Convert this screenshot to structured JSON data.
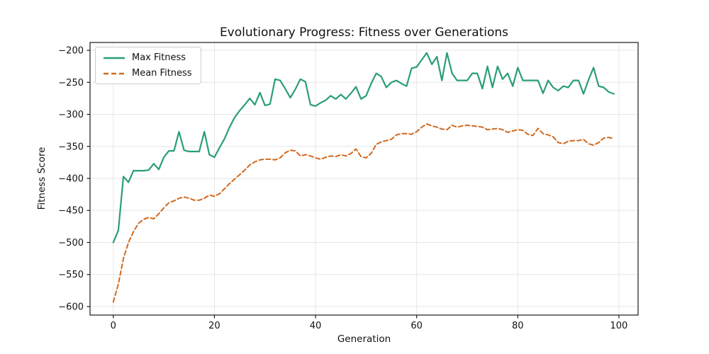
{
  "chart_data": {
    "type": "line",
    "title": "Evolutionary Progress: Fitness over Generations",
    "xlabel": "Generation",
    "ylabel": "Fitness Score",
    "x_start": 0,
    "x_step": 1,
    "xlim": [
      -4.6,
      103.8
    ],
    "ylim": [
      -613.3,
      -187.8
    ],
    "xticks": [
      0,
      20,
      40,
      60,
      80,
      100
    ],
    "yticks": [
      -200,
      -250,
      -300,
      -350,
      -400,
      -450,
      -500,
      -550,
      -600
    ],
    "grid": true,
    "grid_color": "#e6e6e6",
    "axis_color": "#1a1a1a",
    "legend": {
      "position": "upper-left",
      "background": "#ffffff",
      "border_color": "#cccccc"
    },
    "series": [
      {
        "id": "max-fitness",
        "name": "Max Fitness",
        "color": "#2a9e74",
        "style": "solid",
        "width": 2.2,
        "values": [
          -500,
          -481,
          -397,
          -406,
          -388,
          -388,
          -388,
          -387,
          -377,
          -386,
          -367,
          -357,
          -357,
          -327,
          -356,
          -358,
          -358,
          -358,
          -327,
          -363,
          -367,
          -352,
          -338,
          -320,
          -305,
          -294,
          -285,
          -275,
          -285,
          -266,
          -286,
          -284,
          -245,
          -247,
          -260,
          -274,
          -261,
          -245,
          -249,
          -285,
          -287,
          -282,
          -278,
          -271,
          -276,
          -269,
          -276,
          -267,
          -257,
          -276,
          -271,
          -252,
          -236,
          -241,
          -258,
          -250,
          -247,
          -252,
          -256,
          -228,
          -226,
          -215,
          -204,
          -222,
          -210,
          -247,
          -204,
          -236,
          -247,
          -247,
          -247,
          -236,
          -236,
          -260,
          -225,
          -258,
          -225,
          -245,
          -236,
          -256,
          -227,
          -247,
          -247,
          -247,
          -247,
          -267,
          -247,
          -258,
          -263,
          -256,
          -258,
          -247,
          -247,
          -268,
          -246,
          -227,
          -256,
          -258,
          -265,
          -268
        ]
      },
      {
        "id": "mean-fitness",
        "name": "Mean Fitness",
        "color": "#d2691e",
        "style": "dashed",
        "width": 2,
        "values": [
          -593,
          -565,
          -525,
          -500,
          -483,
          -470,
          -464,
          -461,
          -463,
          -455,
          -446,
          -438,
          -435,
          -431,
          -429,
          -431,
          -434,
          -434,
          -431,
          -426,
          -428,
          -424,
          -416,
          -408,
          -401,
          -394,
          -387,
          -379,
          -374,
          -371,
          -370,
          -370,
          -371,
          -368,
          -360,
          -356,
          -357,
          -365,
          -363,
          -365,
          -368,
          -370,
          -367,
          -365,
          -366,
          -363,
          -365,
          -361,
          -354,
          -366,
          -368,
          -361,
          -347,
          -343,
          -341,
          -339,
          -332,
          -330,
          -330,
          -331,
          -327,
          -320,
          -315,
          -318,
          -320,
          -323,
          -324,
          -317,
          -320,
          -318,
          -317,
          -318,
          -319,
          -320,
          -324,
          -323,
          -322,
          -324,
          -328,
          -326,
          -324,
          -325,
          -331,
          -333,
          -322,
          -330,
          -332,
          -335,
          -344,
          -346,
          -342,
          -341,
          -341,
          -339,
          -346,
          -348,
          -344,
          -337,
          -336,
          -338
        ]
      }
    ]
  }
}
